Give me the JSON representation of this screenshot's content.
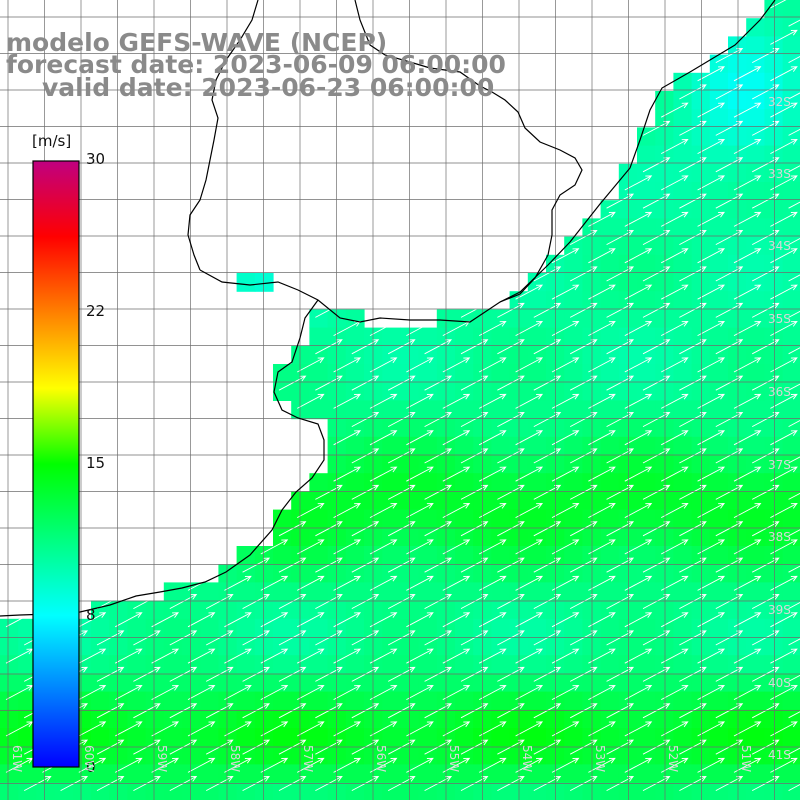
{
  "header": {
    "model": "modelo GEFS-WAVE (NCEP)",
    "forecast": "forecast date: 2023-06-09 06:00:00",
    "valid": "valid date: 2023-06-23 06:00:00"
  },
  "colorbar": {
    "units": "[m/s]",
    "ticks": [
      "30",
      "22",
      "15",
      "8",
      "0"
    ],
    "min": 0,
    "max": 30,
    "stops": [
      "#0000ff",
      "#0080ff",
      "#00ffff",
      "#00ff80",
      "#00ff00",
      "#ffff00",
      "#ff8000",
      "#ff0000",
      "#c00080"
    ]
  },
  "lat_labels": [
    "32S",
    "33S",
    "34S",
    "35S",
    "36S",
    "37S",
    "38S",
    "39S",
    "40S",
    "41S"
  ],
  "lon_labels": [
    "61W",
    "60W",
    "59W",
    "58W",
    "57W",
    "56W",
    "55W",
    "54W",
    "53W",
    "52W",
    "51W"
  ],
  "field": {
    "quantity": "wind speed",
    "units": "m/s",
    "arrow_color": "#ffffff",
    "coast_color": "#000000",
    "grid_color": "#6e6e6e"
  }
}
